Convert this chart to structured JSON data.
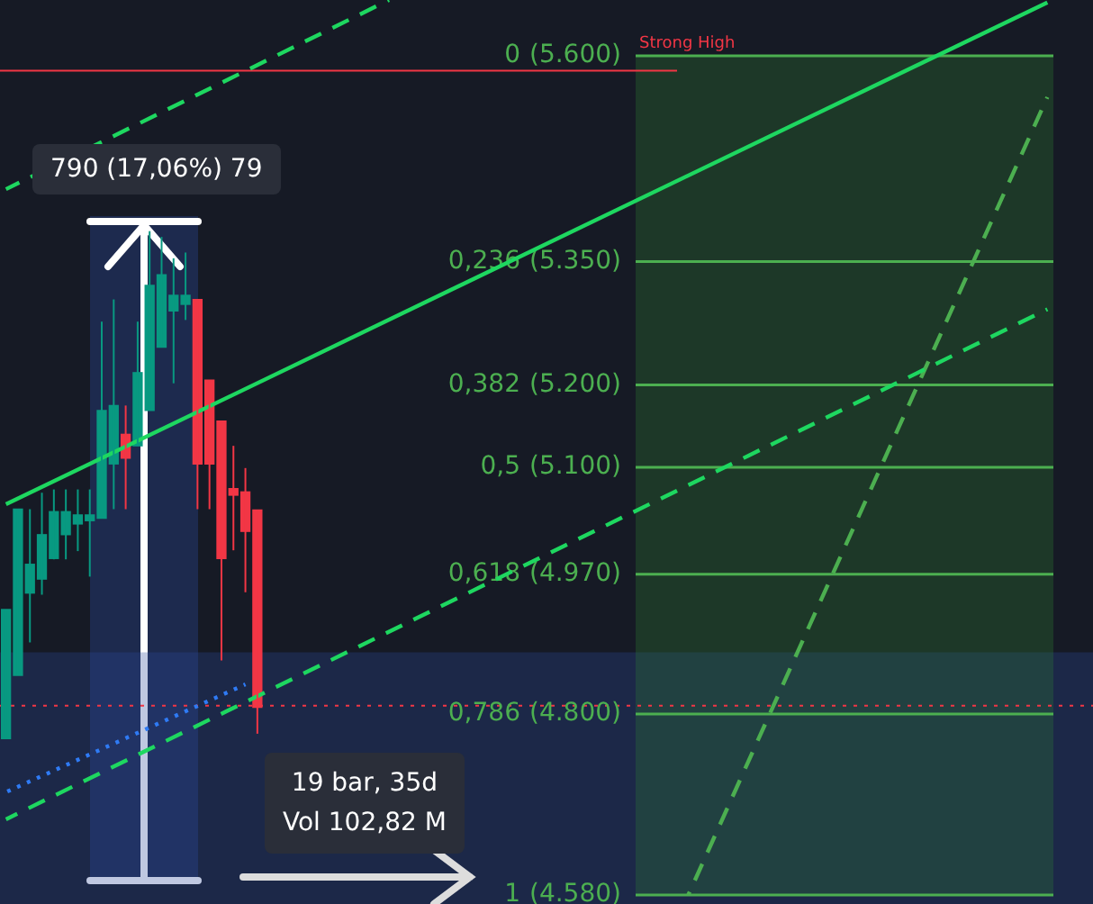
{
  "chart_data": {
    "type": "candlestick",
    "tick_labels": "y",
    "categories": [
      null,
      null,
      null,
      null,
      null,
      null,
      null,
      null,
      null,
      null,
      null,
      null,
      null,
      null,
      null,
      null,
      null,
      null,
      null,
      null,
      null,
      null,
      null,
      null,
      null,
      null,
      null,
      null,
      null,
      null,
      null,
      null,
      null,
      null,
      null,
      null,
      null,
      null,
      null,
      null,
      null,
      null,
      null,
      null,
      null,
      null,
      null,
      null,
      null,
      null,
      null,
      null,
      null,
      null,
      null,
      null,
      null,
      null,
      null,
      null,
      null,
      null,
      null,
      null,
      null,
      null,
      null,
      null,
      null,
      null,
      null,
      null,
      null,
      null,
      null,
      null,
      null,
      null,
      null,
      null,
      null,
      null,
      null,
      null,
      null,
      null,
      null,
      null
    ],
    "ylim": [
      4569,
      5668
    ],
    "yticks": [
      {
        "value": 5600,
        "label": "(5.600)"
      },
      {
        "value": 5350,
        "label": "(5.350)"
      },
      {
        "value": 5200,
        "label": "(5.200)"
      },
      {
        "value": 5100,
        "label": "(5.100)"
      },
      {
        "value": 4970,
        "label": "(4.970)"
      },
      {
        "value": 4800,
        "label": "(4.800)"
      },
      {
        "value": 4580,
        "label": "(4.580)"
      }
    ],
    "ohlc": [
      [
        4770,
        4927,
        4770,
        4927
      ],
      [
        4847,
        5049,
        4847,
        5049
      ],
      [
        4947,
        5049,
        4887,
        4982
      ],
      [
        4964,
        5069,
        4945,
        5018
      ],
      [
        4989,
        5073,
        4988,
        5046
      ],
      [
        5018,
        5073,
        4988,
        5046
      ],
      [
        5031,
        5073,
        4998,
        5042
      ],
      [
        5035,
        5073,
        4967,
        5042
      ],
      [
        5038,
        5277,
        5038,
        5169
      ],
      [
        5104,
        5304,
        5049,
        5175
      ],
      [
        5140,
        5175,
        5049,
        5111
      ],
      [
        5126,
        5277,
        5126,
        5215
      ],
      [
        5169,
        5387,
        5169,
        5321
      ],
      [
        5246,
        5380,
        5246,
        5334
      ],
      [
        5290,
        5354,
        5202,
        5309
      ],
      [
        5298,
        5361,
        5279,
        5309
      ],
      [
        5304,
        5304,
        5049,
        5104
      ],
      [
        5206,
        5206,
        5049,
        5104
      ],
      [
        5156,
        5156,
        4865,
        4989
      ],
      [
        5074,
        5126,
        4999,
        5066
      ],
      [
        5070,
        5099,
        4948,
        5022
      ],
      [
        5048,
        5048,
        4776,
        4808
      ],
      null,
      null,
      null,
      null,
      null,
      null,
      null,
      null,
      null,
      null,
      null,
      null,
      null,
      null,
      null,
      null,
      null,
      null,
      null,
      null,
      null,
      null,
      null,
      null,
      null,
      null,
      null,
      null,
      null,
      null,
      null,
      null,
      null,
      null,
      null,
      null,
      null,
      null,
      null,
      null,
      null,
      null,
      null,
      null,
      null,
      null,
      null,
      null,
      null,
      null,
      null,
      null,
      null,
      null,
      null,
      null,
      null,
      null,
      null,
      null,
      null,
      null,
      null,
      null,
      null,
      null
    ],
    "colors": [
      "#089981",
      "#089981",
      "#089981",
      "#089981",
      "#089981",
      "#089981",
      "#089981",
      "#089981",
      "#089981",
      "#089981",
      "#f23645",
      "#089981",
      "#089981",
      "#089981",
      "#089981",
      "#089981",
      "#f23645",
      "#f23645",
      "#f23645",
      "#f23645",
      "#f23645",
      "#f23645",
      null,
      null,
      null,
      null,
      null,
      null,
      null,
      null,
      null,
      null,
      null,
      null,
      null,
      null,
      null,
      null,
      null,
      null,
      null,
      null,
      null,
      null,
      null,
      null,
      null,
      null,
      null,
      null,
      null,
      null,
      null,
      null,
      null,
      null,
      null,
      null,
      null,
      null,
      null,
      null,
      null,
      null,
      null,
      null,
      null,
      null,
      null,
      null,
      null,
      null,
      null,
      null,
      null,
      null,
      null,
      null,
      null,
      null,
      null,
      null,
      null,
      null,
      null,
      null,
      null,
      null
    ],
    "series": [
      {
        "type": "line",
        "color": "#1ed760",
        "line_style": "solid",
        "values": [
          5055,
          null,
          null,
          null,
          null,
          null,
          null,
          null,
          null,
          null,
          null,
          null,
          null,
          null,
          null,
          null,
          null,
          null,
          null,
          null,
          null,
          null,
          null,
          null,
          null,
          null,
          null,
          null,
          null,
          null,
          null,
          null,
          null,
          null,
          null,
          null,
          null,
          null,
          null,
          null,
          null,
          null,
          null,
          null,
          null,
          null,
          null,
          null,
          null,
          null,
          null,
          null,
          null,
          null,
          null,
          null,
          null,
          null,
          null,
          null,
          null,
          null,
          null,
          null,
          null,
          null,
          null,
          null,
          null,
          null,
          null,
          null,
          null,
          null,
          null,
          null,
          null,
          null,
          null,
          null,
          null,
          null,
          null,
          null,
          null,
          null,
          null,
          5665
        ]
      },
      {
        "type": "line",
        "color": "#1ed760",
        "line_style": "dashed",
        "values": [
          5438,
          null,
          null,
          null,
          null,
          null,
          null,
          null,
          null,
          null,
          null,
          null,
          null,
          null,
          null,
          null,
          null,
          null,
          null,
          null,
          null,
          null,
          null,
          null,
          null,
          null,
          null,
          null,
          null,
          null,
          null,
          null,
          5668,
          null,
          null,
          null,
          null,
          null,
          null,
          null,
          null,
          null,
          null,
          null,
          null,
          null,
          null,
          null,
          null,
          null,
          null,
          null,
          null,
          null,
          null,
          null,
          null,
          null,
          null,
          null,
          null,
          null,
          null,
          null,
          null,
          null,
          null,
          null,
          null,
          null,
          null,
          null,
          null,
          null,
          null,
          null,
          null,
          null,
          null,
          null,
          null,
          null,
          null,
          null,
          null,
          null,
          null,
          null
        ]
      },
      {
        "type": "line",
        "color": "#1ed760",
        "line_style": "dashed",
        "values": [
          4672,
          null,
          null,
          null,
          null,
          null,
          null,
          null,
          null,
          null,
          null,
          null,
          null,
          null,
          null,
          null,
          null,
          null,
          null,
          null,
          null,
          null,
          null,
          null,
          null,
          null,
          null,
          null,
          null,
          null,
          null,
          null,
          null,
          null,
          null,
          null,
          null,
          null,
          null,
          null,
          null,
          null,
          null,
          null,
          null,
          null,
          null,
          null,
          null,
          null,
          null,
          null,
          null,
          null,
          null,
          null,
          null,
          null,
          null,
          null,
          null,
          null,
          null,
          null,
          null,
          null,
          null,
          null,
          null,
          null,
          null,
          null,
          null,
          null,
          null,
          null,
          null,
          null,
          null,
          null,
          null,
          null,
          null,
          null,
          null,
          null,
          null,
          5292
        ]
      },
      {
        "type": "line",
        "color": "#2f7bf5",
        "line_style": "dotted",
        "values": [
          4705,
          null,
          null,
          null,
          null,
          null,
          null,
          null,
          null,
          null,
          null,
          null,
          null,
          null,
          null,
          null,
          null,
          null,
          null,
          null,
          4836,
          null,
          null,
          null,
          null,
          null,
          null,
          null,
          null,
          null,
          null,
          null,
          null,
          null,
          null,
          null,
          null,
          null,
          null,
          null,
          null,
          null,
          null,
          null,
          null,
          null,
          null,
          null,
          null,
          null,
          null,
          null,
          null,
          null,
          null,
          null,
          null,
          null,
          null,
          null,
          null,
          null,
          null,
          null,
          null,
          null,
          null,
          null,
          null,
          null,
          null,
          null,
          null,
          null,
          null,
          null,
          null,
          null,
          null,
          null,
          null,
          null,
          null,
          null,
          null,
          null,
          null,
          null
        ]
      },
      {
        "type": "line",
        "color": "#4caf50",
        "line_style": "dashed",
        "values": [
          null,
          null,
          null,
          null,
          null,
          null,
          null,
          null,
          null,
          null,
          null,
          null,
          null,
          null,
          null,
          null,
          null,
          null,
          null,
          null,
          null,
          null,
          null,
          null,
          null,
          null,
          null,
          null,
          null,
          null,
          null,
          null,
          null,
          null,
          null,
          null,
          null,
          null,
          null,
          null,
          null,
          null,
          null,
          null,
          null,
          null,
          null,
          null,
          null,
          null,
          null,
          null,
          null,
          null,
          null,
          null,
          null,
          4580,
          null,
          null,
          null,
          null,
          null,
          null,
          null,
          null,
          null,
          null,
          null,
          null,
          null,
          null,
          null,
          null,
          null,
          null,
          null,
          null,
          null,
          null,
          null,
          null,
          null,
          null,
          null,
          null,
          null,
          5550
        ]
      }
    ],
    "bands": [
      {
        "axis": "y",
        "from": 4569,
        "to": 4875,
        "color": "#2a4a9a"
      },
      {
        "axis": "y",
        "from": 4580,
        "to": 5600,
        "color": "#2e7d32"
      }
    ],
    "ref_lines": [
      {
        "axis": "y",
        "value": 5600,
        "color": "#4caf50"
      },
      {
        "axis": "y",
        "value": 5350,
        "color": "#4caf50"
      },
      {
        "axis": "y",
        "value": 5200,
        "color": "#4caf50"
      },
      {
        "axis": "y",
        "value": 5100,
        "color": "#4caf50"
      },
      {
        "axis": "y",
        "value": 4970,
        "color": "#4caf50"
      },
      {
        "axis": "y",
        "value": 4800,
        "color": "#4caf50"
      },
      {
        "axis": "y",
        "value": 4580,
        "color": "#4caf50"
      },
      {
        "axis": "y",
        "value": 5582,
        "label": "Strong High",
        "color": "#f23645"
      },
      {
        "axis": "y",
        "value": 4810,
        "color": "#f23645",
        "line_style": "dotted"
      }
    ],
    "annotations": [
      "0",
      "0,236",
      "0,382",
      "0,5",
      "0,618",
      "0,786",
      "1",
      "790 (17,06%) 79",
      "19 bar, 35d",
      "Vol 102,82 M"
    ]
  }
}
